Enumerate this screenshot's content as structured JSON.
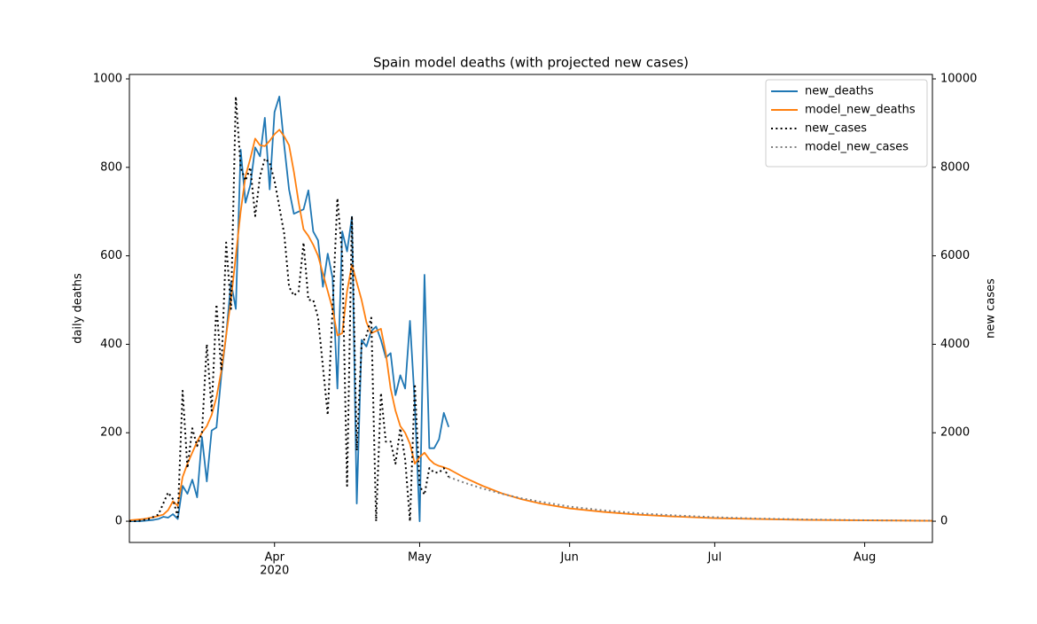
{
  "chart_data": {
    "type": "line",
    "title": "Spain model deaths (with projected new cases)",
    "ylabel": "daily deaths",
    "y2label": "new cases",
    "x": [
      "2020-03-02",
      "2020-03-03",
      "2020-03-04",
      "2020-03-05",
      "2020-03-06",
      "2020-03-07",
      "2020-03-08",
      "2020-03-09",
      "2020-03-10",
      "2020-03-11",
      "2020-03-12",
      "2020-03-13",
      "2020-03-14",
      "2020-03-15",
      "2020-03-16",
      "2020-03-17",
      "2020-03-18",
      "2020-03-19",
      "2020-03-20",
      "2020-03-21",
      "2020-03-22",
      "2020-03-23",
      "2020-03-24",
      "2020-03-25",
      "2020-03-26",
      "2020-03-27",
      "2020-03-28",
      "2020-03-29",
      "2020-03-30",
      "2020-03-31",
      "2020-04-01",
      "2020-04-02",
      "2020-04-03",
      "2020-04-04",
      "2020-04-05",
      "2020-04-06",
      "2020-04-07",
      "2020-04-08",
      "2020-04-09",
      "2020-04-10",
      "2020-04-11",
      "2020-04-12",
      "2020-04-13",
      "2020-04-14",
      "2020-04-15",
      "2020-04-16",
      "2020-04-17",
      "2020-04-18",
      "2020-04-19",
      "2020-04-20",
      "2020-04-21",
      "2020-04-22",
      "2020-04-23",
      "2020-04-24",
      "2020-04-25",
      "2020-04-26",
      "2020-04-27",
      "2020-04-28",
      "2020-04-29",
      "2020-04-30",
      "2020-05-01",
      "2020-05-02",
      "2020-05-03",
      "2020-05-04",
      "2020-05-05",
      "2020-05-06",
      "2020-05-07",
      "2020-05-10",
      "2020-05-14",
      "2020-05-18",
      "2020-05-22",
      "2020-05-26",
      "2020-06-01",
      "2020-06-08",
      "2020-06-15",
      "2020-06-22",
      "2020-07-01",
      "2020-07-10",
      "2020-07-20",
      "2020-08-01",
      "2020-08-15"
    ],
    "series": [
      {
        "name": "new_deaths",
        "color": "#1f77b4",
        "linestyle": "solid",
        "axis": "y",
        "values": [
          0,
          0,
          0,
          1,
          2,
          3,
          5,
          10,
          8,
          16,
          5,
          80,
          62,
          94,
          54,
          190,
          90,
          205,
          212,
          330,
          420,
          540,
          480,
          840,
          720,
          760,
          845,
          825,
          912,
          750,
          925,
          960,
          850,
          750,
          695,
          700,
          705,
          748,
          655,
          635,
          530,
          605,
          550,
          300,
          655,
          610,
          688,
          40,
          410,
          395,
          430,
          440,
          410,
          370,
          380,
          285,
          330,
          300,
          453,
          265,
          0,
          557,
          165,
          165,
          185,
          245,
          213,
          null,
          null,
          null,
          null,
          null,
          null,
          null,
          null,
          null,
          null,
          null,
          null,
          null,
          null
        ]
      },
      {
        "name": "model_new_deaths",
        "color": "#ff7f0e",
        "linestyle": "solid",
        "axis": "y",
        "values": [
          2,
          3,
          4,
          5,
          7,
          9,
          12,
          15,
          25,
          45,
          35,
          100,
          130,
          155,
          180,
          200,
          215,
          240,
          280,
          340,
          420,
          500,
          600,
          700,
          780,
          820,
          865,
          850,
          848,
          860,
          875,
          885,
          870,
          850,
          790,
          720,
          660,
          645,
          625,
          600,
          560,
          520,
          480,
          420,
          425,
          520,
          580,
          540,
          500,
          450,
          425,
          430,
          435,
          380,
          300,
          250,
          215,
          200,
          175,
          130,
          145,
          155,
          140,
          130,
          125,
          122,
          118,
          100,
          80,
          63,
          50,
          40,
          29,
          21,
          15,
          11,
          7,
          5,
          3,
          2,
          1
        ]
      },
      {
        "name": "new_cases",
        "color": "#000000",
        "linestyle": "dotted",
        "axis": "y2",
        "values": [
          0,
          0,
          10,
          30,
          50,
          100,
          150,
          400,
          650,
          500,
          100,
          2950,
          1200,
          2100,
          1700,
          2000,
          4000,
          2500,
          4900,
          3400,
          6300,
          4800,
          9600,
          8000,
          7700,
          8000,
          6900,
          7800,
          8200,
          8100,
          7700,
          7100,
          6500,
          5300,
          5100,
          5200,
          6300,
          5000,
          5000,
          4600,
          3500,
          2400,
          4800,
          7300,
          6000,
          800,
          6900,
          1600,
          4000,
          4200,
          4600,
          0,
          2900,
          1800,
          1800,
          1300,
          2100,
          1400,
          0,
          3100,
          800,
          600,
          1200,
          1100,
          1100,
          1200,
          1000,
          null,
          null,
          null,
          null,
          null,
          null,
          null,
          null,
          null,
          null,
          null,
          null,
          null,
          null
        ]
      },
      {
        "name": "model_new_cases",
        "color": "#808080",
        "linestyle": "dotted",
        "axis": "y2",
        "values": [
          null,
          null,
          null,
          null,
          null,
          null,
          null,
          null,
          null,
          null,
          null,
          null,
          null,
          null,
          null,
          null,
          null,
          null,
          null,
          null,
          null,
          null,
          null,
          null,
          null,
          null,
          null,
          null,
          null,
          null,
          null,
          null,
          null,
          null,
          null,
          null,
          null,
          null,
          null,
          null,
          null,
          null,
          null,
          null,
          null,
          null,
          null,
          null,
          null,
          null,
          null,
          null,
          null,
          null,
          null,
          null,
          null,
          null,
          null,
          null,
          null,
          null,
          null,
          null,
          null,
          null,
          1000,
          880,
          740,
          620,
          520,
          440,
          330,
          245,
          180,
          135,
          90,
          60,
          40,
          22,
          12
        ]
      }
    ],
    "xlim": [
      "2020-03-02",
      "2020-08-15"
    ],
    "xticks": [
      {
        "value": "2020-04-01",
        "label": "Apr"
      },
      {
        "value": "2020-05-01",
        "label": "May"
      },
      {
        "value": "2020-06-01",
        "label": "Jun"
      },
      {
        "value": "2020-07-01",
        "label": "Jul"
      },
      {
        "value": "2020-08-01",
        "label": "Aug"
      }
    ],
    "year_label": "2020",
    "ylim": [
      -48,
      1010
    ],
    "yticks": [
      0,
      200,
      400,
      600,
      800,
      1000
    ],
    "y2lim": [
      -480,
      10100
    ],
    "y2ticks": [
      0,
      2000,
      4000,
      6000,
      8000,
      10000
    ],
    "legend": "upper right"
  }
}
